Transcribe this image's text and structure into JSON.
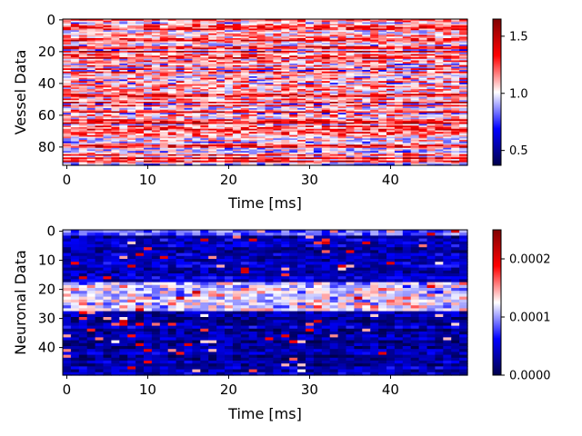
{
  "chart_data": [
    {
      "type": "heatmap",
      "title": "",
      "xlabel": "Time [ms]",
      "ylabel": "Vessel Data",
      "x_range": [
        0,
        50
      ],
      "y_range": [
        0,
        92
      ],
      "y_inverted": true,
      "x_ticks": [
        "0",
        "10",
        "20",
        "30",
        "40"
      ],
      "y_ticks": [
        "0",
        "20",
        "40",
        "60",
        "80"
      ],
      "colormap": "seismic",
      "colorbar": {
        "range": [
          0.37,
          1.65
        ],
        "ticks": [
          "0.5",
          "1.0",
          "1.5"
        ],
        "tick_values": [
          0.5,
          1.0,
          1.5
        ]
      },
      "value_distribution": {
        "min": 0.37,
        "max": 1.65,
        "typical": 1.1
      }
    },
    {
      "type": "heatmap",
      "title": "",
      "xlabel": "Time [ms]",
      "ylabel": "Neuronal Data",
      "x_range": [
        0,
        50
      ],
      "y_range": [
        0,
        50
      ],
      "y_inverted": true,
      "x_ticks": [
        "0",
        "10",
        "20",
        "30",
        "40"
      ],
      "y_ticks": [
        "0",
        "10",
        "20",
        "30",
        "40"
      ],
      "colormap": "seismic",
      "colorbar": {
        "range": [
          0.0,
          0.00025
        ],
        "ticks": [
          "0.0000",
          "0.0001",
          "0.0002"
        ],
        "tick_values": [
          0.0,
          0.0001,
          0.0002
        ]
      },
      "value_distribution": {
        "min": 0.0,
        "max": 0.00025,
        "typical": 6e-05,
        "high_band_rows": [
          18,
          27
        ]
      }
    }
  ]
}
